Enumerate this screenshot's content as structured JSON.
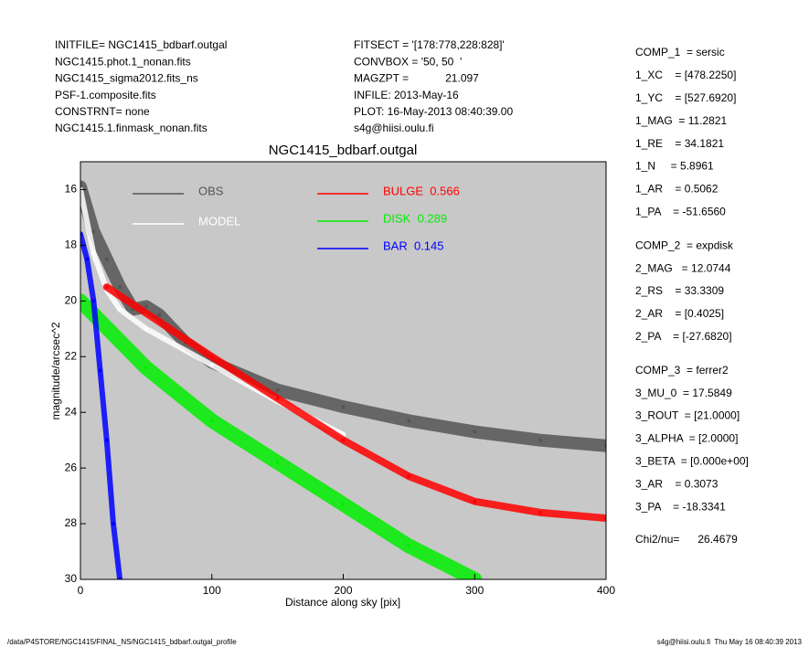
{
  "header": {
    "left": [
      "INITFILE= NGC1415_bdbarf.outgal",
      "NGC1415.phot.1_nonan.fits",
      "NGC1415_sigma2012.fits_ns",
      "PSF-1.composite.fits",
      "CONSTRNT= none",
      "NGC1415.1.finmask_nonan.fits"
    ],
    "middle": [
      "FITSECT = '[178:778,228:828]'",
      "CONVBOX = '50, 50  '",
      "MAGZPT =            21.097",
      "INFILE: 2013-May-16",
      "PLOT: 16-May-2013 08:40:39.00",
      "s4g@hiisi.oulu.fi"
    ],
    "right": [
      "COMP_1  = sersic",
      "1_XC    = [478.2250]",
      "1_YC    = [527.6920]",
      "1_MAG  = 11.2821",
      "1_RE    = 34.1821",
      "1_N     = 5.8961",
      "1_AR    = 0.5062",
      "1_PA    = -51.6560",
      "COMP_2  = expdisk",
      "2_MAG   = 12.0744",
      "2_RS    = 33.3309",
      "2_AR    = [0.4025]",
      "2_PA    = [-27.6820]",
      "COMP_3  = ferrer2",
      "3_MU_0  = 17.5849",
      "3_ROUT  = [21.0000]",
      "3_ALPHA  = [2.0000]",
      "3_BETA  = [0.000e+00]",
      "3_AR    = 0.3073",
      "3_PA    = -18.3341",
      "Chi2/nu=      26.4679"
    ]
  },
  "footer": {
    "left": "/data/P4STORE/NGC1415/FINAL_NS/NGC1415_bdbarf.outgal_profile",
    "right": "s4g@hiisi.oulu.fi  Thu May 16 08:40:39 2013"
  },
  "chart_data": {
    "type": "scatter",
    "title": "NGC1415_bdbarf.outgal",
    "x_label": "Distance along sky [pix]",
    "y_label": "magnitude/arcsec^2",
    "xlim": [
      0,
      400
    ],
    "ylim": [
      30,
      15
    ],
    "xticks": [
      0,
      100,
      200,
      300,
      400
    ],
    "yticks": [
      16,
      18,
      20,
      22,
      24,
      26,
      28,
      30
    ],
    "background": "#c8c8c8",
    "series": [
      {
        "name": "OBS",
        "color": "#555555",
        "x": [
          0,
          10,
          20,
          30,
          40,
          50,
          60,
          80,
          100,
          150,
          200,
          250,
          300,
          350,
          400
        ],
        "values": [
          15.9,
          17.5,
          18.5,
          19.5,
          20.3,
          20.2,
          20.5,
          21.5,
          22.2,
          23.2,
          23.8,
          24.3,
          24.7,
          25,
          25.2
        ]
      },
      {
        "name": "MODEL",
        "color": "#ffffff",
        "x": [
          0,
          10,
          20,
          30,
          50,
          100,
          150,
          200
        ],
        "values": [
          16,
          18.3,
          19.6,
          20.3,
          21,
          22.3,
          23.6,
          24.8
        ]
      },
      {
        "name": "BULGE  0.566",
        "color": "#ff0000",
        "x": [
          20,
          100,
          150,
          200,
          250,
          300,
          350,
          400
        ],
        "values": [
          19.5,
          22,
          23.5,
          25,
          26.3,
          27.2,
          27.6,
          27.8
        ]
      },
      {
        "name": "DISK  0.289",
        "color": "#00ee00",
        "x": [
          0,
          50,
          100,
          150,
          200,
          250,
          300
        ],
        "values": [
          20,
          22.4,
          24.3,
          25.8,
          27.3,
          28.8,
          30
        ]
      },
      {
        "name": "BAR  0.145",
        "color": "#0000ff",
        "x": [
          0,
          5,
          10,
          15,
          20,
          25,
          30
        ],
        "values": [
          17.6,
          18.5,
          20,
          22.5,
          25,
          28,
          30
        ]
      }
    ]
  }
}
